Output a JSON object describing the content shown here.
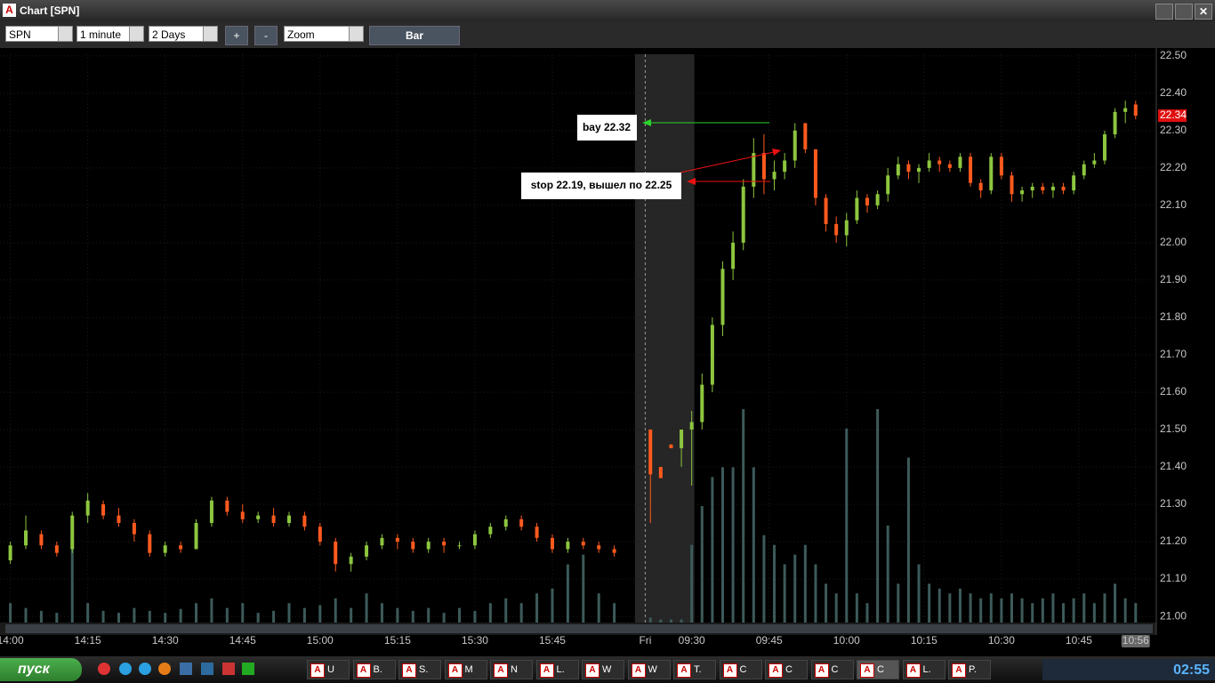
{
  "window": {
    "title": "Chart [SPN]"
  },
  "toolbar": {
    "symbol": "SPN",
    "interval": "1 minute",
    "range": "2 Days",
    "zoom_in": "+",
    "zoom_out": "-",
    "zoom": "Zoom",
    "style": "Bar"
  },
  "chart_data": {
    "type": "candlestick",
    "x": [
      0,
      3,
      6,
      9,
      12,
      15,
      18,
      21,
      24,
      27,
      30,
      33,
      36,
      39,
      42,
      45,
      48,
      51,
      54,
      57,
      60,
      63,
      66,
      69,
      72,
      75,
      78,
      81,
      84,
      87,
      90,
      93,
      96,
      99,
      102,
      105,
      108,
      111,
      114,
      117,
      124,
      126,
      128,
      130,
      132,
      134,
      136,
      138,
      140,
      142,
      144,
      146,
      148,
      150,
      152,
      154,
      156,
      158,
      160,
      162,
      164,
      166,
      168,
      170,
      172,
      174,
      176,
      178,
      180,
      182,
      184,
      186,
      188,
      190,
      192,
      194,
      196,
      198,
      200,
      202,
      204,
      206,
      208,
      210,
      212,
      214,
      216,
      218
    ],
    "open": [
      21.15,
      21.19,
      21.22,
      21.19,
      21.18,
      21.27,
      21.3,
      21.27,
      21.25,
      21.22,
      21.17,
      21.19,
      21.18,
      21.25,
      21.31,
      21.28,
      21.26,
      21.27,
      21.25,
      21.27,
      21.24,
      21.2,
      21.14,
      21.16,
      21.19,
      21.21,
      21.2,
      21.18,
      21.2,
      21.19,
      21.19,
      21.22,
      21.24,
      21.26,
      21.24,
      21.21,
      21.18,
      21.2,
      21.19,
      21.18,
      21.5,
      21.4,
      21.46,
      21.45,
      21.5,
      21.52,
      21.62,
      21.78,
      21.93,
      22.0,
      22.15,
      22.24,
      22.17,
      22.19,
      22.22,
      22.32,
      22.25,
      22.12,
      22.05,
      22.02,
      22.06,
      22.12,
      22.1,
      22.13,
      22.18,
      22.21,
      22.19,
      22.2,
      22.22,
      22.21,
      22.2,
      22.23,
      22.16,
      22.14,
      22.23,
      22.18,
      22.13,
      22.14,
      22.15,
      22.14,
      22.15,
      22.14,
      22.18,
      22.21,
      22.22,
      22.29,
      22.35,
      22.37
    ],
    "high": [
      21.2,
      21.27,
      21.23,
      21.2,
      21.28,
      21.33,
      21.31,
      21.29,
      21.26,
      21.23,
      21.2,
      21.2,
      21.26,
      21.32,
      21.32,
      21.3,
      21.28,
      21.29,
      21.28,
      21.28,
      21.25,
      21.21,
      21.17,
      21.2,
      21.22,
      21.22,
      21.21,
      21.21,
      21.21,
      21.2,
      21.23,
      21.25,
      21.27,
      21.27,
      21.25,
      21.22,
      21.21,
      21.21,
      21.2,
      21.19,
      21.5,
      21.4,
      21.46,
      21.5,
      21.55,
      21.65,
      21.8,
      21.95,
      22.03,
      22.17,
      22.28,
      22.29,
      22.22,
      22.24,
      22.32,
      22.32,
      22.25,
      22.13,
      22.07,
      22.08,
      22.14,
      22.13,
      22.14,
      22.2,
      22.23,
      22.22,
      22.21,
      22.24,
      22.23,
      22.22,
      22.24,
      22.24,
      22.17,
      22.24,
      22.24,
      22.19,
      22.15,
      22.16,
      22.16,
      22.16,
      22.16,
      22.19,
      22.22,
      22.24,
      22.3,
      22.36,
      22.38,
      22.38
    ],
    "low": [
      21.14,
      21.18,
      21.18,
      21.16,
      21.17,
      21.25,
      21.26,
      21.24,
      21.2,
      21.16,
      21.16,
      21.17,
      21.18,
      21.24,
      21.27,
      21.25,
      21.25,
      21.24,
      21.24,
      21.23,
      21.19,
      21.12,
      21.12,
      21.15,
      21.18,
      21.18,
      21.17,
      21.17,
      21.17,
      21.18,
      21.18,
      21.21,
      21.23,
      21.23,
      21.2,
      21.17,
      21.17,
      21.18,
      21.17,
      21.16,
      21.25,
      21.37,
      21.45,
      21.4,
      21.35,
      21.5,
      21.6,
      21.75,
      21.9,
      21.98,
      22.12,
      22.13,
      22.14,
      22.17,
      22.2,
      22.24,
      22.1,
      22.03,
      22.0,
      21.99,
      22.05,
      22.08,
      22.09,
      22.11,
      22.17,
      22.17,
      22.16,
      22.19,
      22.19,
      22.19,
      22.19,
      22.15,
      22.12,
      22.13,
      22.17,
      22.11,
      22.11,
      22.12,
      22.13,
      22.12,
      22.13,
      22.13,
      22.17,
      22.2,
      22.21,
      22.28,
      22.32,
      22.33
    ],
    "close": [
      21.19,
      21.23,
      21.19,
      21.17,
      21.27,
      21.31,
      21.27,
      21.25,
      21.22,
      21.17,
      21.19,
      21.18,
      21.25,
      21.31,
      21.28,
      21.26,
      21.27,
      21.25,
      21.27,
      21.24,
      21.2,
      21.14,
      21.16,
      21.19,
      21.21,
      21.2,
      21.18,
      21.2,
      21.19,
      21.19,
      21.22,
      21.24,
      21.26,
      21.24,
      21.21,
      21.18,
      21.2,
      21.19,
      21.18,
      21.17,
      21.38,
      21.37,
      21.45,
      21.5,
      21.52,
      21.62,
      21.78,
      21.93,
      22.0,
      22.15,
      22.24,
      22.17,
      22.19,
      22.22,
      22.3,
      22.25,
      22.12,
      22.05,
      22.02,
      22.06,
      22.12,
      22.1,
      22.13,
      22.18,
      22.21,
      22.19,
      22.2,
      22.22,
      22.21,
      22.2,
      22.23,
      22.16,
      22.14,
      22.23,
      22.18,
      22.13,
      22.14,
      22.15,
      22.14,
      22.15,
      22.14,
      22.18,
      22.21,
      22.22,
      22.29,
      22.35,
      22.36,
      22.34
    ],
    "volume": [
      20,
      15,
      12,
      10,
      90,
      20,
      12,
      10,
      15,
      12,
      10,
      14,
      20,
      25,
      15,
      20,
      10,
      12,
      20,
      15,
      18,
      25,
      15,
      30,
      20,
      15,
      12,
      15,
      10,
      15,
      12,
      20,
      25,
      20,
      30,
      35,
      60,
      70,
      30,
      20,
      5,
      3,
      3,
      3,
      80,
      120,
      150,
      160,
      160,
      220,
      160,
      90,
      80,
      60,
      70,
      80,
      60,
      40,
      30,
      200,
      30,
      20,
      220,
      100,
      40,
      170,
      60,
      40,
      35,
      30,
      35,
      30,
      25,
      30,
      25,
      30,
      25,
      20,
      25,
      30,
      20,
      25,
      30,
      20,
      30,
      40,
      25,
      20
    ],
    "up_color": "#8dc63f",
    "down_color": "#ff5a1e",
    "volume_color": "#3d5a5a",
    "shaded_range": [
      121,
      132.5
    ],
    "xlim": [
      -2,
      222
    ],
    "ylim": [
      20.955,
      22.521
    ],
    "yticks": [
      {
        "value": 21.0,
        "label": "21.00"
      },
      {
        "value": 21.1,
        "label": "21.10"
      },
      {
        "value": 21.2,
        "label": "21.20"
      },
      {
        "value": 21.3,
        "label": "21.30"
      },
      {
        "value": 21.4,
        "label": "21.40"
      },
      {
        "value": 21.5,
        "label": "21.50"
      },
      {
        "value": 21.6,
        "label": "21.60"
      },
      {
        "value": 21.7,
        "label": "21.70"
      },
      {
        "value": 21.8,
        "label": "21.80"
      },
      {
        "value": 21.9,
        "label": "21.90"
      },
      {
        "value": 22.0,
        "label": "22.00"
      },
      {
        "value": 22.1,
        "label": "22.10"
      },
      {
        "value": 22.2,
        "label": "22.20"
      },
      {
        "value": 22.3,
        "label": "22.30"
      },
      {
        "value": 22.4,
        "label": "22.40"
      },
      {
        "value": 22.5,
        "label": "22.50"
      }
    ],
    "xticks": [
      {
        "value": 0,
        "label": "14:00"
      },
      {
        "value": 15,
        "label": "14:15"
      },
      {
        "value": 30,
        "label": "14:30"
      },
      {
        "value": 45,
        "label": "14:45"
      },
      {
        "value": 60,
        "label": "15:00"
      },
      {
        "value": 75,
        "label": "15:15"
      },
      {
        "value": 90,
        "label": "15:30"
      },
      {
        "value": 105,
        "label": "15:45"
      },
      {
        "value": 123,
        "label": "Fri"
      },
      {
        "value": 132,
        "label": "09:30"
      },
      {
        "value": 147,
        "label": "09:45"
      },
      {
        "value": 162,
        "label": "10:00"
      },
      {
        "value": 177,
        "label": "10:15"
      },
      {
        "value": 192,
        "label": "10:30"
      },
      {
        "value": 207,
        "label": "10:45"
      },
      {
        "value": 218,
        "label": "10:56"
      }
    ],
    "last_price": {
      "value": 22.34,
      "label": "22.34"
    },
    "annotations": [
      "bay 22.32",
      "stop 22.19, вышел по 22.25"
    ]
  },
  "taskbar": {
    "start": "пуск",
    "tasks": [
      "U",
      "B.",
      "S.",
      "M",
      "N",
      "L.",
      "W",
      "W",
      "T.",
      "C",
      "C",
      "C",
      "C",
      "L.",
      "P."
    ],
    "clock": "02:55"
  }
}
